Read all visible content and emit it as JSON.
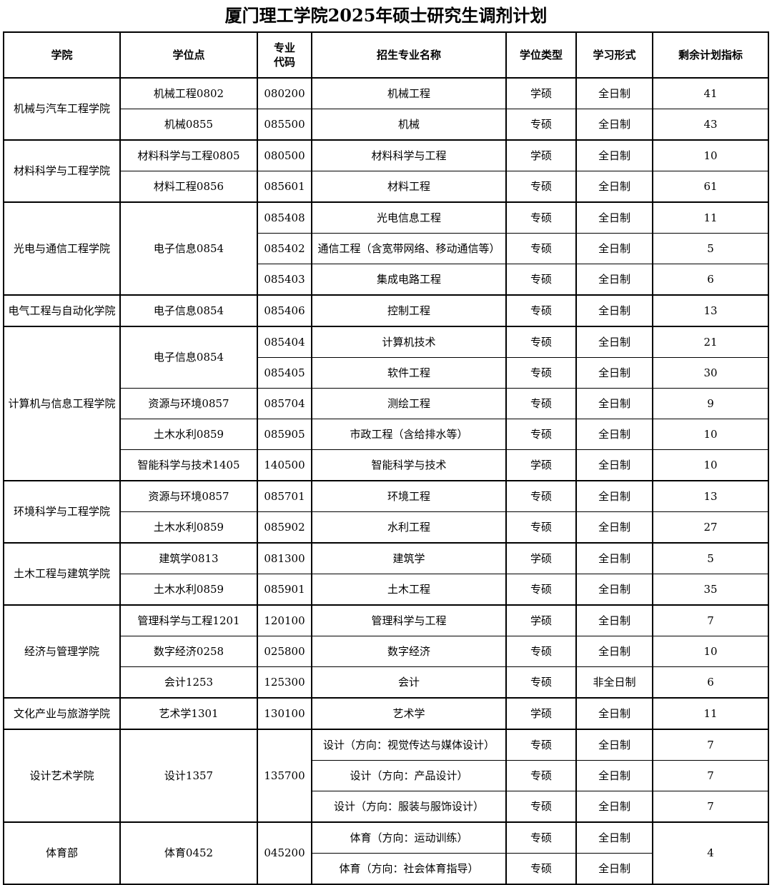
{
  "page": {
    "title": "厦门理工学院2025年硕士研究生调剂计划"
  },
  "table": {
    "headers": {
      "college": "学院",
      "degree_point": "学位点",
      "major_code": "专业\n代码",
      "major_name": "招生专业名称",
      "degree_type": "学位类型",
      "study_form": "学习形式",
      "remaining_quota": "剩余计划指标"
    },
    "groups": [
      {
        "college": "机械与汽车工程学院",
        "rows": [
          {
            "degree": "机械工程0802",
            "code": "080200",
            "major": "机械工程",
            "type": "学硕",
            "form": "全日制",
            "quota": "41"
          },
          {
            "degree": "机械0855",
            "code": "085500",
            "major": "机械",
            "type": "专硕",
            "form": "全日制",
            "quota": "43"
          }
        ]
      },
      {
        "college": "材料科学与工程学院",
        "rows": [
          {
            "degree": "材料科学与工程0805",
            "code": "080500",
            "major": "材料科学与工程",
            "type": "学硕",
            "form": "全日制",
            "quota": "10"
          },
          {
            "degree": "材料工程0856",
            "code": "085601",
            "major": "材料工程",
            "type": "专硕",
            "form": "全日制",
            "quota": "61"
          }
        ]
      },
      {
        "college": "光电与通信工程学院",
        "rows": [
          {
            "degree": "电子信息0854",
            "degree_span": 3,
            "code": "085408",
            "major": "光电信息工程",
            "type": "专硕",
            "form": "全日制",
            "quota": "11"
          },
          {
            "code": "085402",
            "major": "通信工程（含宽带网络、移动通信等）",
            "type": "专硕",
            "form": "全日制",
            "quota": "5"
          },
          {
            "code": "085403",
            "major": "集成电路工程",
            "type": "专硕",
            "form": "全日制",
            "quota": "6"
          }
        ]
      },
      {
        "college": "电气工程与自动化学院",
        "rows": [
          {
            "degree": "电子信息0854",
            "code": "085406",
            "major": "控制工程",
            "type": "专硕",
            "form": "全日制",
            "quota": "13"
          }
        ]
      },
      {
        "college": "计算机与信息工程学院",
        "rows": [
          {
            "degree": "电子信息0854",
            "degree_span": 2,
            "code": "085404",
            "major": "计算机技术",
            "type": "专硕",
            "form": "全日制",
            "quota": "21"
          },
          {
            "code": "085405",
            "major": "软件工程",
            "type": "专硕",
            "form": "全日制",
            "quota": "30"
          },
          {
            "degree": "资源与环境0857",
            "code": "085704",
            "major": "测绘工程",
            "type": "专硕",
            "form": "全日制",
            "quota": "9"
          },
          {
            "degree": "土木水利0859",
            "code": "085905",
            "major": "市政工程（含给排水等）",
            "type": "专硕",
            "form": "全日制",
            "quota": "10"
          },
          {
            "degree": "智能科学与技术1405",
            "code": "140500",
            "major": "智能科学与技术",
            "type": "学硕",
            "form": "全日制",
            "quota": "10"
          }
        ]
      },
      {
        "college": "环境科学与工程学院",
        "rows": [
          {
            "degree": "资源与环境0857",
            "code": "085701",
            "major": "环境工程",
            "type": "专硕",
            "form": "全日制",
            "quota": "13"
          },
          {
            "degree": "土木水利0859",
            "code": "085902",
            "major": "水利工程",
            "type": "专硕",
            "form": "全日制",
            "quota": "27"
          }
        ]
      },
      {
        "college": "土木工程与建筑学院",
        "rows": [
          {
            "degree": "建筑学0813",
            "code": "081300",
            "major": "建筑学",
            "type": "学硕",
            "form": "全日制",
            "quota": "5"
          },
          {
            "degree": "土木水利0859",
            "code": "085901",
            "major": "土木工程",
            "type": "专硕",
            "form": "全日制",
            "quota": "35"
          }
        ]
      },
      {
        "college": "经济与管理学院",
        "rows": [
          {
            "degree": "管理科学与工程1201",
            "code": "120100",
            "major": "管理科学与工程",
            "type": "学硕",
            "form": "全日制",
            "quota": "7"
          },
          {
            "degree": "数字经济0258",
            "code": "025800",
            "major": "数字经济",
            "type": "专硕",
            "form": "全日制",
            "quota": "10"
          },
          {
            "degree": "会计1253",
            "code": "125300",
            "major": "会计",
            "type": "专硕",
            "form": "非全日制",
            "quota": "6"
          }
        ]
      },
      {
        "college": "文化产业与旅游学院",
        "rows": [
          {
            "degree": "艺术学1301",
            "code": "130100",
            "major": "艺术学",
            "type": "学硕",
            "form": "全日制",
            "quota": "11"
          }
        ]
      },
      {
        "college": "设计艺术学院",
        "rows": [
          {
            "degree": "设计1357",
            "degree_span": 3,
            "code": "135700",
            "code_span": 3,
            "major": "设计（方向：视觉传达与媒体设计）",
            "type": "专硕",
            "form": "全日制",
            "quota": "7"
          },
          {
            "major": "设计（方向：产品设计）",
            "type": "专硕",
            "form": "全日制",
            "quota": "7"
          },
          {
            "major": "设计（方向：服装与服饰设计）",
            "type": "专硕",
            "form": "全日制",
            "quota": "7"
          }
        ]
      },
      {
        "college": "体育部",
        "rows": [
          {
            "degree": "体育0452",
            "degree_span": 2,
            "code": "045200",
            "code_span": 2,
            "major": "体育（方向：运动训练）",
            "type": "专硕",
            "form": "全日制",
            "quota": "4",
            "quota_span": 2
          },
          {
            "major": "体育（方向：社会体育指导）",
            "type": "专硕",
            "form": "全日制"
          }
        ]
      }
    ]
  }
}
